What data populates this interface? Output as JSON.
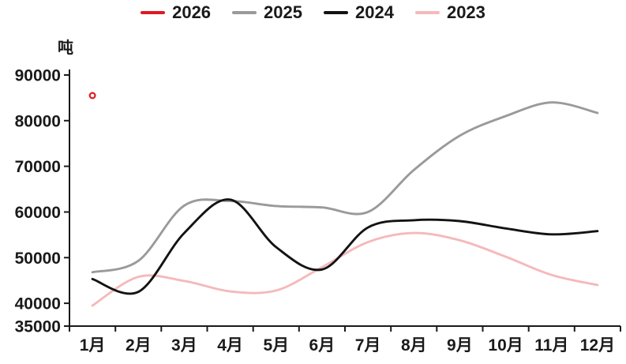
{
  "legend": {
    "items": [
      {
        "label": "2026"
      },
      {
        "label": "2025"
      },
      {
        "label": "2024"
      },
      {
        "label": "2023"
      }
    ]
  },
  "chart_data": {
    "type": "line",
    "title": "",
    "unit_label": "吨",
    "xlabel": "",
    "ylabel": "吨",
    "x_categories": [
      "1月",
      "2月",
      "3月",
      "4月",
      "5月",
      "6月",
      "7月",
      "8月",
      "9月",
      "10月",
      "11月",
      "12月"
    ],
    "y_ticks": [
      90000,
      80000,
      70000,
      60000,
      50000,
      40000,
      35000
    ],
    "ylim": [
      35000,
      90000
    ],
    "grid": false,
    "legend_position": "top-center",
    "axis_color": "#1a1a1a",
    "series": [
      {
        "name": "2026",
        "color": "#dd1a21",
        "style": "open-circle-marker",
        "values": [
          85500,
          null,
          null,
          null,
          null,
          null,
          null,
          null,
          null,
          null,
          null,
          null
        ]
      },
      {
        "name": "2025",
        "color": "#9a9a9a",
        "style": "line",
        "values": [
          46800,
          49300,
          61400,
          62400,
          61300,
          61000,
          60000,
          69200,
          76700,
          81000,
          84000,
          81700
        ]
      },
      {
        "name": "2024",
        "color": "#131313",
        "style": "line",
        "values": [
          45300,
          42500,
          55400,
          62700,
          52300,
          47400,
          56600,
          58200,
          58000,
          56400,
          55100,
          55800
        ]
      },
      {
        "name": "2023",
        "color": "#f5b9ba",
        "style": "line",
        "values": [
          39500,
          45800,
          44900,
          42600,
          42800,
          47900,
          53400,
          55400,
          53800,
          50200,
          46200,
          44000
        ]
      }
    ]
  }
}
